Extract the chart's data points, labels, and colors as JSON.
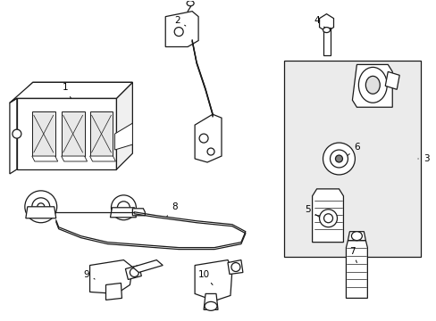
{
  "background_color": "#ffffff",
  "line_color": "#1a1a1a",
  "lw": 0.9,
  "fig_width": 4.89,
  "fig_height": 3.6,
  "dpi": 100
}
